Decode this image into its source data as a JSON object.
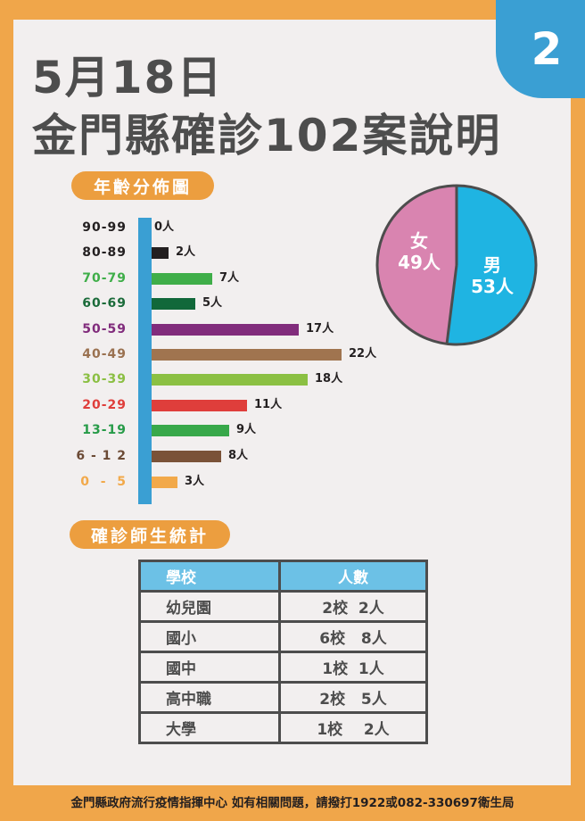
{
  "badge": {
    "number": "2"
  },
  "header": {
    "date": "5月18日",
    "title": "金門縣確診102案說明"
  },
  "sections": {
    "age": "年齡分佈圖",
    "school": "確診師生統計"
  },
  "colors": {
    "frame": "#F0A64A",
    "panel": "#F2EFEF",
    "accent_blue": "#3A9FD3",
    "title_text": "#4D4D4D",
    "pill": "#EC9E3F",
    "female": "#D984B0",
    "male": "#1FB4E2",
    "table_header": "#6CC1E6"
  },
  "age_rows": [
    {
      "label": "90-99",
      "value": 0,
      "text": "0人",
      "color": "#231F20",
      "bar_color": "#231F20"
    },
    {
      "label": "80-89",
      "value": 2,
      "text": "2人",
      "color": "#231F20",
      "bar_color": "#231F20"
    },
    {
      "label": "70-79",
      "value": 7,
      "text": "7人",
      "color": "#3FAE49",
      "bar_color": "#3FAE49"
    },
    {
      "label": "60-69",
      "value": 5,
      "text": "5人",
      "color": "#1B6B3A",
      "bar_color": "#11683A"
    },
    {
      "label": "50-59",
      "value": 17,
      "text": "17人",
      "color": "#812C7C",
      "bar_color": "#812C7C"
    },
    {
      "label": "40-49",
      "value": 22,
      "text": "22人",
      "color": "#9A7150",
      "bar_color": "#A0744F"
    },
    {
      "label": "30-39",
      "value": 18,
      "text": "18人",
      "color": "#8BBF43",
      "bar_color": "#8BC043"
    },
    {
      "label": "20-29",
      "value": 11,
      "text": "11人",
      "color": "#DF3E3B",
      "bar_color": "#DF3E3B"
    },
    {
      "label": "13-19",
      "value": 9,
      "text": "9人",
      "color": "#279B48",
      "bar_color": "#38A84A"
    },
    {
      "label": "6 - 1 2",
      "value": 8,
      "text": "8人",
      "color": "#6B4A35",
      "bar_color": "#7A5238"
    },
    {
      "label": "0  -  5",
      "value": 3,
      "text": "3人",
      "color": "#F2A94A",
      "bar_color": "#F2A94A"
    }
  ],
  "gender": {
    "female": {
      "label": "女",
      "count": "49人",
      "value": 49
    },
    "male": {
      "label": "男",
      "count": "53人",
      "value": 53
    }
  },
  "school_table": {
    "headers": [
      "學校",
      "人數"
    ],
    "rows": [
      [
        "幼兒園",
        "2校  2人"
      ],
      [
        "國小",
        "6校   8人"
      ],
      [
        "國中",
        "1校  1人"
      ],
      [
        "高中職",
        "2校   5人"
      ],
      [
        "大學",
        "1校    2人"
      ]
    ]
  },
  "footer": "金門縣政府流行疫情指揮中心  如有相關問題，請撥打1922或082-330697衛生局",
  "chart_data": [
    {
      "type": "bar",
      "orientation": "horizontal",
      "title": "年齡分佈圖",
      "categories": [
        "90-99",
        "80-89",
        "70-79",
        "60-69",
        "50-59",
        "40-49",
        "30-39",
        "20-29",
        "13-19",
        "6-12",
        "0-5"
      ],
      "values": [
        0,
        2,
        7,
        5,
        17,
        22,
        18,
        11,
        9,
        8,
        3
      ],
      "unit": "人",
      "xlabel": "",
      "ylabel": "年齡",
      "grid": false
    },
    {
      "type": "pie",
      "title": "性別",
      "categories": [
        "女",
        "男"
      ],
      "values": [
        49,
        53
      ],
      "unit": "人"
    },
    {
      "type": "table",
      "title": "確診師生統計",
      "columns": [
        "學校",
        "人數"
      ],
      "rows": [
        [
          "幼兒園",
          "2校 2人"
        ],
        [
          "國小",
          "6校 8人"
        ],
        [
          "國中",
          "1校 1人"
        ],
        [
          "高中職",
          "2校 5人"
        ],
        [
          "大學",
          "1校 2人"
        ]
      ]
    }
  ]
}
